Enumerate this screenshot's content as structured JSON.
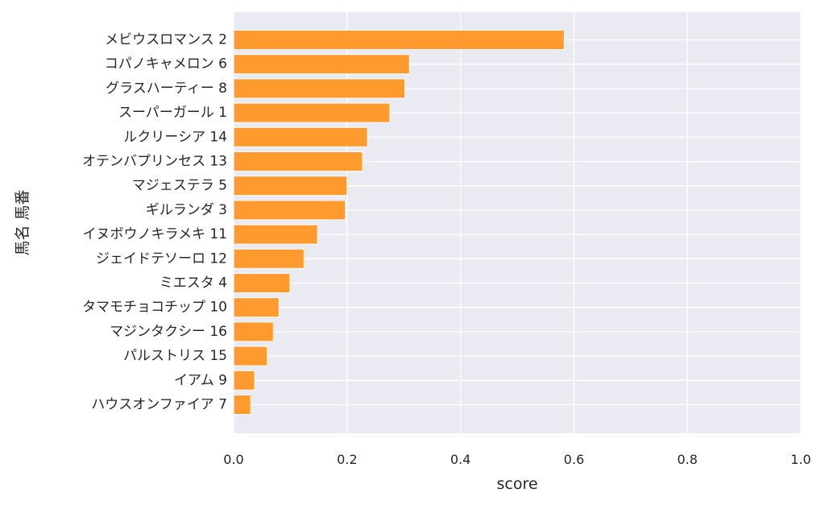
{
  "chart_data": {
    "type": "bar",
    "orientation": "horizontal",
    "categories": [
      "メビウスロマンス 2",
      "コパノキャメロン 6",
      "グラスハーティー 8",
      "スーパーガール 1",
      "ルクリーシア 14",
      "オテンバプリンセス 13",
      "マジェステラ 5",
      "ギルランダ 3",
      "イヌボウノキラメキ 11",
      "ジェイドテソーロ 12",
      "ミエスタ 4",
      "タマモチョコチップ 10",
      "マジンタクシー 16",
      "パルストリス 15",
      "イアム 9",
      "ハウスオンファイア 7"
    ],
    "values": [
      0.583,
      0.31,
      0.302,
      0.275,
      0.236,
      0.227,
      0.2,
      0.197,
      0.148,
      0.124,
      0.099,
      0.08,
      0.07,
      0.059,
      0.037,
      0.03
    ],
    "xlabel": "score",
    "ylabel": "馬名 馬番",
    "xlim": [
      0,
      1.0
    ],
    "xticks": [
      "0.0",
      "0.2",
      "0.4",
      "0.6",
      "0.8",
      "1.0"
    ],
    "xtick_values": [
      0,
      0.2,
      0.4,
      0.6,
      0.8,
      1.0
    ],
    "grid": true,
    "colors": {
      "bar": "#ff9a2e",
      "bar_edge": "#ffffff",
      "background": "#eaeaf2",
      "grid": "#ffffff"
    }
  }
}
